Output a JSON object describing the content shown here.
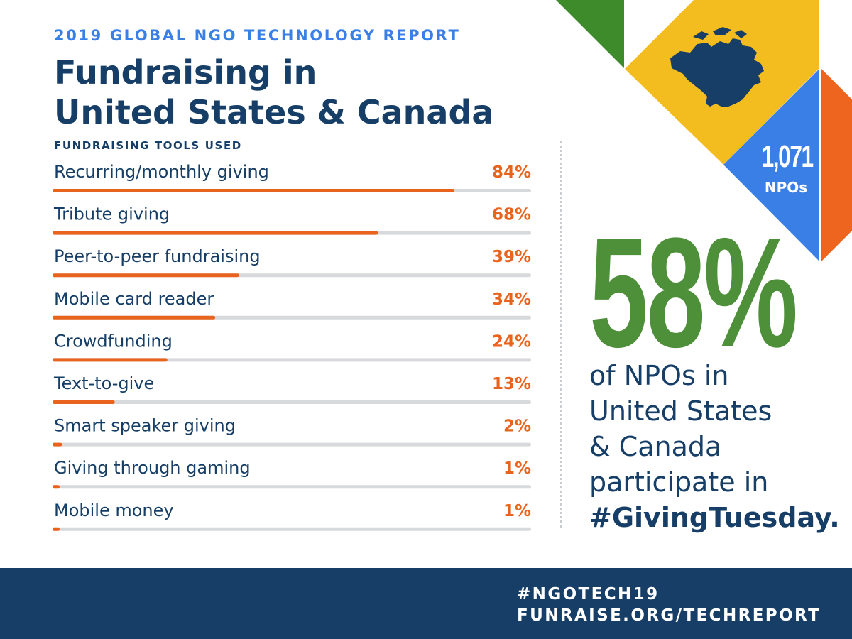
{
  "header": {
    "kicker": "2019 GLOBAL NGO TECHNOLOGY REPORT",
    "title_line1": "Fundraising in",
    "title_line2": "United States & Canada"
  },
  "chart_data": {
    "type": "bar",
    "orientation": "horizontal",
    "title": "FUNDRAISING TOOLS USED",
    "categories": [
      "Recurring/monthly giving",
      "Tribute giving",
      "Peer-to-peer fundraising",
      "Mobile card reader",
      "Crowdfunding",
      "Text-to-give",
      "Smart speaker giving",
      "Giving through gaming",
      "Mobile money"
    ],
    "values": [
      84,
      68,
      39,
      34,
      24,
      13,
      2,
      1,
      1
    ],
    "value_labels": [
      "84%",
      "68%",
      "39%",
      "34%",
      "24%",
      "13%",
      "2%",
      "1%",
      "1%"
    ],
    "xlim": [
      0,
      100
    ],
    "grid": false,
    "colors": {
      "bar": "#e8641e",
      "track": "#d7d9dc",
      "label": "#163e66",
      "value": "#e8641e"
    }
  },
  "highlight": {
    "percent": "58%",
    "lines": [
      "of NPOs in",
      "United States",
      "& Canada",
      "participate in"
    ],
    "hashtag": "#GivingTuesday."
  },
  "badge": {
    "count": "1,071",
    "unit": "NPOs",
    "map_icon": "north-america-map-icon"
  },
  "footer": {
    "hashtag": "#NGOTECH19",
    "url": "FUNRAISE.ORG/TECHREPORT"
  },
  "colors": {
    "navy": "#163e66",
    "blue": "#3a7fe6",
    "orange": "#e8641e",
    "green": "#4e8f3a",
    "yellow": "#f4bd1f",
    "dark_green": "#3d8b2a"
  }
}
